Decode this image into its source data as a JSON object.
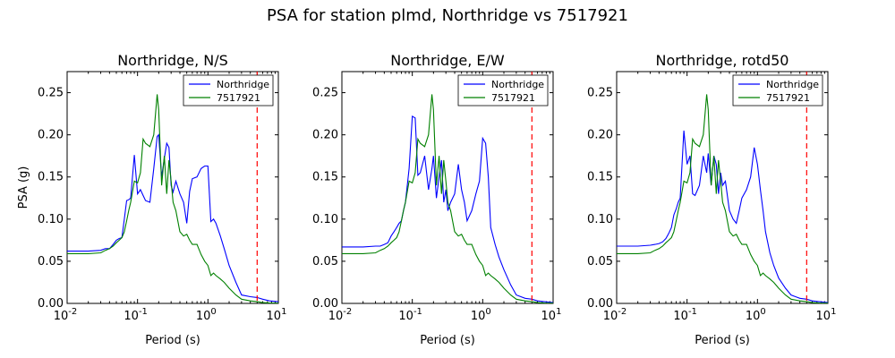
{
  "figure": {
    "suptitle": "PSA for station plmd, Northridge vs 7517921",
    "vline_color": "#ff0000",
    "series_colors": [
      "#0000ff",
      "#008000"
    ]
  },
  "chart_data": [
    {
      "type": "line",
      "title": "Northridge, N/S",
      "xlabel": "Period (s)",
      "ylabel": "PSA (g)",
      "xscale": "log",
      "xlim": [
        0.01,
        10
      ],
      "ylim": [
        0,
        0.275
      ],
      "xticks": [
        "10^-2",
        "10^-1",
        "10^0",
        "10^1"
      ],
      "yticks": [
        "0.00",
        "0.05",
        "0.10",
        "0.15",
        "0.20",
        "0.25"
      ],
      "legend_position": "top-right",
      "vline_x": 5.0,
      "grid": false,
      "series": [
        {
          "name": "Northridge",
          "color": "#0000ff",
          "x": [
            0.01,
            0.02,
            0.03,
            0.035,
            0.04,
            0.045,
            0.05,
            0.055,
            0.06,
            0.065,
            0.07,
            0.075,
            0.08,
            0.09,
            0.1,
            0.11,
            0.12,
            0.13,
            0.15,
            0.17,
            0.19,
            0.2,
            0.22,
            0.24,
            0.26,
            0.28,
            0.3,
            0.32,
            0.35,
            0.4,
            0.45,
            0.5,
            0.55,
            0.6,
            0.7,
            0.8,
            0.9,
            1.0,
            1.1,
            1.2,
            1.3,
            1.5,
            1.7,
            2.0,
            2.5,
            3.0,
            4.0,
            5.0,
            6.0,
            7.5,
            10.0
          ],
          "values": [
            0.062,
            0.062,
            0.063,
            0.065,
            0.065,
            0.07,
            0.075,
            0.077,
            0.078,
            0.1,
            0.122,
            0.123,
            0.125,
            0.176,
            0.13,
            0.135,
            0.128,
            0.122,
            0.12,
            0.16,
            0.198,
            0.2,
            0.15,
            0.172,
            0.19,
            0.185,
            0.14,
            0.132,
            0.145,
            0.13,
            0.12,
            0.095,
            0.133,
            0.148,
            0.15,
            0.16,
            0.163,
            0.163,
            0.097,
            0.1,
            0.095,
            0.08,
            0.065,
            0.045,
            0.025,
            0.01,
            0.008,
            0.007,
            0.005,
            0.003,
            0.002
          ]
        },
        {
          "name": "7517921",
          "color": "#008000",
          "x": [
            0.01,
            0.02,
            0.03,
            0.035,
            0.04,
            0.045,
            0.05,
            0.055,
            0.06,
            0.065,
            0.07,
            0.075,
            0.08,
            0.09,
            0.1,
            0.11,
            0.12,
            0.13,
            0.15,
            0.17,
            0.19,
            0.2,
            0.22,
            0.24,
            0.26,
            0.28,
            0.3,
            0.32,
            0.35,
            0.4,
            0.45,
            0.5,
            0.55,
            0.6,
            0.7,
            0.8,
            0.9,
            1.0,
            1.1,
            1.2,
            1.3,
            1.5,
            1.7,
            2.0,
            2.5,
            3.0,
            4.0,
            5.0,
            6.0,
            7.5,
            10.0
          ],
          "values": [
            0.059,
            0.059,
            0.06,
            0.063,
            0.065,
            0.068,
            0.072,
            0.075,
            0.078,
            0.085,
            0.098,
            0.11,
            0.12,
            0.145,
            0.143,
            0.155,
            0.195,
            0.19,
            0.186,
            0.2,
            0.248,
            0.23,
            0.14,
            0.175,
            0.13,
            0.17,
            0.145,
            0.12,
            0.11,
            0.085,
            0.08,
            0.082,
            0.075,
            0.07,
            0.07,
            0.058,
            0.05,
            0.045,
            0.033,
            0.036,
            0.033,
            0.029,
            0.025,
            0.018,
            0.01,
            0.005,
            0.003,
            0.002,
            0.001,
            0.0005,
            0.0003
          ]
        }
      ]
    },
    {
      "type": "line",
      "title": "Northridge, E/W",
      "xlabel": "Period (s)",
      "ylabel": "",
      "xscale": "log",
      "xlim": [
        0.01,
        10
      ],
      "ylim": [
        0,
        0.275
      ],
      "xticks": [
        "10^-2",
        "10^-1",
        "10^0",
        "10^1"
      ],
      "yticks": [
        "0.00",
        "0.05",
        "0.10",
        "0.15",
        "0.20",
        "0.25"
      ],
      "legend_position": "top-right",
      "vline_x": 5.0,
      "grid": false,
      "series": [
        {
          "name": "Northridge",
          "color": "#0000ff",
          "x": [
            0.01,
            0.02,
            0.03,
            0.035,
            0.04,
            0.045,
            0.05,
            0.055,
            0.06,
            0.065,
            0.07,
            0.075,
            0.08,
            0.09,
            0.1,
            0.11,
            0.12,
            0.13,
            0.15,
            0.17,
            0.19,
            0.2,
            0.22,
            0.24,
            0.26,
            0.28,
            0.3,
            0.32,
            0.35,
            0.4,
            0.45,
            0.5,
            0.55,
            0.6,
            0.7,
            0.8,
            0.9,
            1.0,
            1.1,
            1.2,
            1.3,
            1.5,
            1.7,
            2.0,
            2.5,
            3.0,
            4.0,
            5.0,
            6.0,
            7.5,
            10.0
          ],
          "values": [
            0.067,
            0.067,
            0.068,
            0.068,
            0.07,
            0.072,
            0.08,
            0.085,
            0.09,
            0.095,
            0.098,
            0.11,
            0.12,
            0.16,
            0.222,
            0.22,
            0.152,
            0.155,
            0.175,
            0.135,
            0.16,
            0.175,
            0.125,
            0.15,
            0.17,
            0.12,
            0.135,
            0.11,
            0.12,
            0.13,
            0.165,
            0.135,
            0.12,
            0.098,
            0.11,
            0.13,
            0.145,
            0.196,
            0.19,
            0.15,
            0.09,
            0.07,
            0.055,
            0.04,
            0.022,
            0.01,
            0.006,
            0.005,
            0.003,
            0.002,
            0.001
          ]
        },
        {
          "name": "7517921",
          "color": "#008000",
          "x": [
            0.01,
            0.02,
            0.03,
            0.035,
            0.04,
            0.045,
            0.05,
            0.055,
            0.06,
            0.065,
            0.07,
            0.075,
            0.08,
            0.09,
            0.1,
            0.11,
            0.12,
            0.13,
            0.15,
            0.17,
            0.19,
            0.2,
            0.22,
            0.24,
            0.26,
            0.28,
            0.3,
            0.32,
            0.35,
            0.4,
            0.45,
            0.5,
            0.55,
            0.6,
            0.7,
            0.8,
            0.9,
            1.0,
            1.1,
            1.2,
            1.3,
            1.5,
            1.7,
            2.0,
            2.5,
            3.0,
            4.0,
            5.0,
            6.0,
            7.5,
            10.0
          ],
          "values": [
            0.059,
            0.059,
            0.06,
            0.063,
            0.065,
            0.068,
            0.072,
            0.075,
            0.078,
            0.085,
            0.098,
            0.11,
            0.12,
            0.145,
            0.143,
            0.155,
            0.195,
            0.19,
            0.186,
            0.2,
            0.248,
            0.23,
            0.14,
            0.175,
            0.13,
            0.17,
            0.145,
            0.12,
            0.11,
            0.085,
            0.08,
            0.082,
            0.075,
            0.07,
            0.07,
            0.058,
            0.05,
            0.045,
            0.033,
            0.036,
            0.033,
            0.029,
            0.025,
            0.018,
            0.01,
            0.005,
            0.003,
            0.002,
            0.001,
            0.0005,
            0.0003
          ]
        }
      ]
    },
    {
      "type": "line",
      "title": "Northridge, rotd50",
      "xlabel": "Period (s)",
      "ylabel": "",
      "xscale": "log",
      "xlim": [
        0.01,
        10
      ],
      "ylim": [
        0,
        0.275
      ],
      "xticks": [
        "10^-2",
        "10^-1",
        "10^0",
        "10^1"
      ],
      "yticks": [
        "0.00",
        "0.05",
        "0.10",
        "0.15",
        "0.20",
        "0.25"
      ],
      "legend_position": "top-right",
      "vline_x": 5.0,
      "grid": false,
      "series": [
        {
          "name": "Northridge",
          "color": "#0000ff",
          "x": [
            0.01,
            0.02,
            0.03,
            0.035,
            0.04,
            0.045,
            0.05,
            0.055,
            0.06,
            0.065,
            0.07,
            0.075,
            0.08,
            0.09,
            0.1,
            0.11,
            0.12,
            0.13,
            0.15,
            0.17,
            0.19,
            0.2,
            0.22,
            0.24,
            0.26,
            0.28,
            0.3,
            0.32,
            0.35,
            0.4,
            0.45,
            0.5,
            0.55,
            0.6,
            0.7,
            0.8,
            0.9,
            1.0,
            1.1,
            1.2,
            1.3,
            1.5,
            1.7,
            2.0,
            2.5,
            3.0,
            4.0,
            5.0,
            6.0,
            7.5,
            10.0
          ],
          "values": [
            0.068,
            0.068,
            0.069,
            0.07,
            0.071,
            0.073,
            0.077,
            0.083,
            0.09,
            0.105,
            0.112,
            0.12,
            0.125,
            0.205,
            0.165,
            0.175,
            0.13,
            0.128,
            0.14,
            0.175,
            0.155,
            0.178,
            0.14,
            0.175,
            0.165,
            0.13,
            0.155,
            0.14,
            0.145,
            0.11,
            0.1,
            0.095,
            0.11,
            0.125,
            0.135,
            0.15,
            0.185,
            0.165,
            0.135,
            0.11,
            0.085,
            0.06,
            0.045,
            0.03,
            0.018,
            0.01,
            0.006,
            0.005,
            0.003,
            0.002,
            0.001
          ]
        },
        {
          "name": "7517921",
          "color": "#008000",
          "x": [
            0.01,
            0.02,
            0.03,
            0.035,
            0.04,
            0.045,
            0.05,
            0.055,
            0.06,
            0.065,
            0.07,
            0.075,
            0.08,
            0.09,
            0.1,
            0.11,
            0.12,
            0.13,
            0.15,
            0.17,
            0.19,
            0.2,
            0.22,
            0.24,
            0.26,
            0.28,
            0.3,
            0.32,
            0.35,
            0.4,
            0.45,
            0.5,
            0.55,
            0.6,
            0.7,
            0.8,
            0.9,
            1.0,
            1.1,
            1.2,
            1.3,
            1.5,
            1.7,
            2.0,
            2.5,
            3.0,
            4.0,
            5.0,
            6.0,
            7.5,
            10.0
          ],
          "values": [
            0.059,
            0.059,
            0.06,
            0.063,
            0.065,
            0.068,
            0.072,
            0.075,
            0.078,
            0.085,
            0.098,
            0.11,
            0.12,
            0.145,
            0.143,
            0.155,
            0.195,
            0.19,
            0.186,
            0.2,
            0.248,
            0.23,
            0.14,
            0.175,
            0.13,
            0.17,
            0.145,
            0.12,
            0.11,
            0.085,
            0.08,
            0.082,
            0.075,
            0.07,
            0.07,
            0.058,
            0.05,
            0.045,
            0.033,
            0.036,
            0.033,
            0.029,
            0.025,
            0.018,
            0.01,
            0.005,
            0.003,
            0.002,
            0.001,
            0.0005,
            0.0003
          ]
        }
      ]
    }
  ]
}
